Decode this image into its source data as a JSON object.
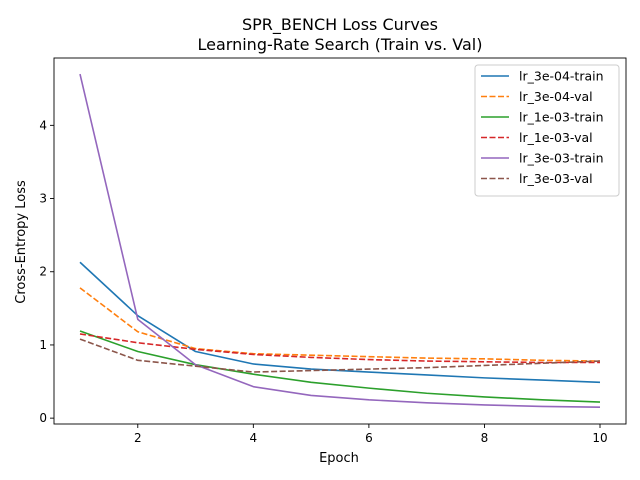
{
  "chart_data": {
    "type": "line",
    "title": "SPR_BENCH Loss Curves",
    "subtitle": "Learning-Rate Search (Train vs. Val)",
    "xlabel": "Epoch",
    "ylabel": "Cross-Entropy Loss",
    "xlim": [
      0.55,
      10.45
    ],
    "ylim": [
      -0.08,
      4.92
    ],
    "xticks": [
      2,
      4,
      6,
      8,
      10
    ],
    "yticks": [
      0,
      1,
      2,
      3,
      4
    ],
    "grid": false,
    "legend": "top-right",
    "x": [
      1,
      2,
      3,
      4,
      5,
      6,
      7,
      8,
      9,
      10
    ],
    "series": [
      {
        "name": "lr_3e-04-train",
        "color": "#1f77b4",
        "dash": "solid",
        "values": [
          2.13,
          1.4,
          0.91,
          0.74,
          0.67,
          0.63,
          0.59,
          0.55,
          0.52,
          0.49
        ]
      },
      {
        "name": "lr_3e-04-val",
        "color": "#ff7f0e",
        "dash": "dashed",
        "values": [
          1.78,
          1.18,
          0.95,
          0.88,
          0.86,
          0.84,
          0.82,
          0.81,
          0.79,
          0.78
        ]
      },
      {
        "name": "lr_1e-03-train",
        "color": "#2ca02c",
        "dash": "solid",
        "values": [
          1.19,
          0.91,
          0.73,
          0.6,
          0.49,
          0.41,
          0.34,
          0.29,
          0.25,
          0.22
        ]
      },
      {
        "name": "lr_1e-03-val",
        "color": "#d62728",
        "dash": "dashed",
        "values": [
          1.15,
          1.03,
          0.94,
          0.87,
          0.83,
          0.8,
          0.78,
          0.77,
          0.76,
          0.76
        ]
      },
      {
        "name": "lr_3e-03-train",
        "color": "#9467bd",
        "dash": "solid",
        "values": [
          4.7,
          1.35,
          0.73,
          0.43,
          0.31,
          0.25,
          0.21,
          0.18,
          0.16,
          0.15
        ]
      },
      {
        "name": "lr_3e-03-val",
        "color": "#8c564b",
        "dash": "dashed",
        "values": [
          1.08,
          0.79,
          0.71,
          0.63,
          0.65,
          0.67,
          0.69,
          0.72,
          0.75,
          0.78
        ]
      }
    ]
  }
}
